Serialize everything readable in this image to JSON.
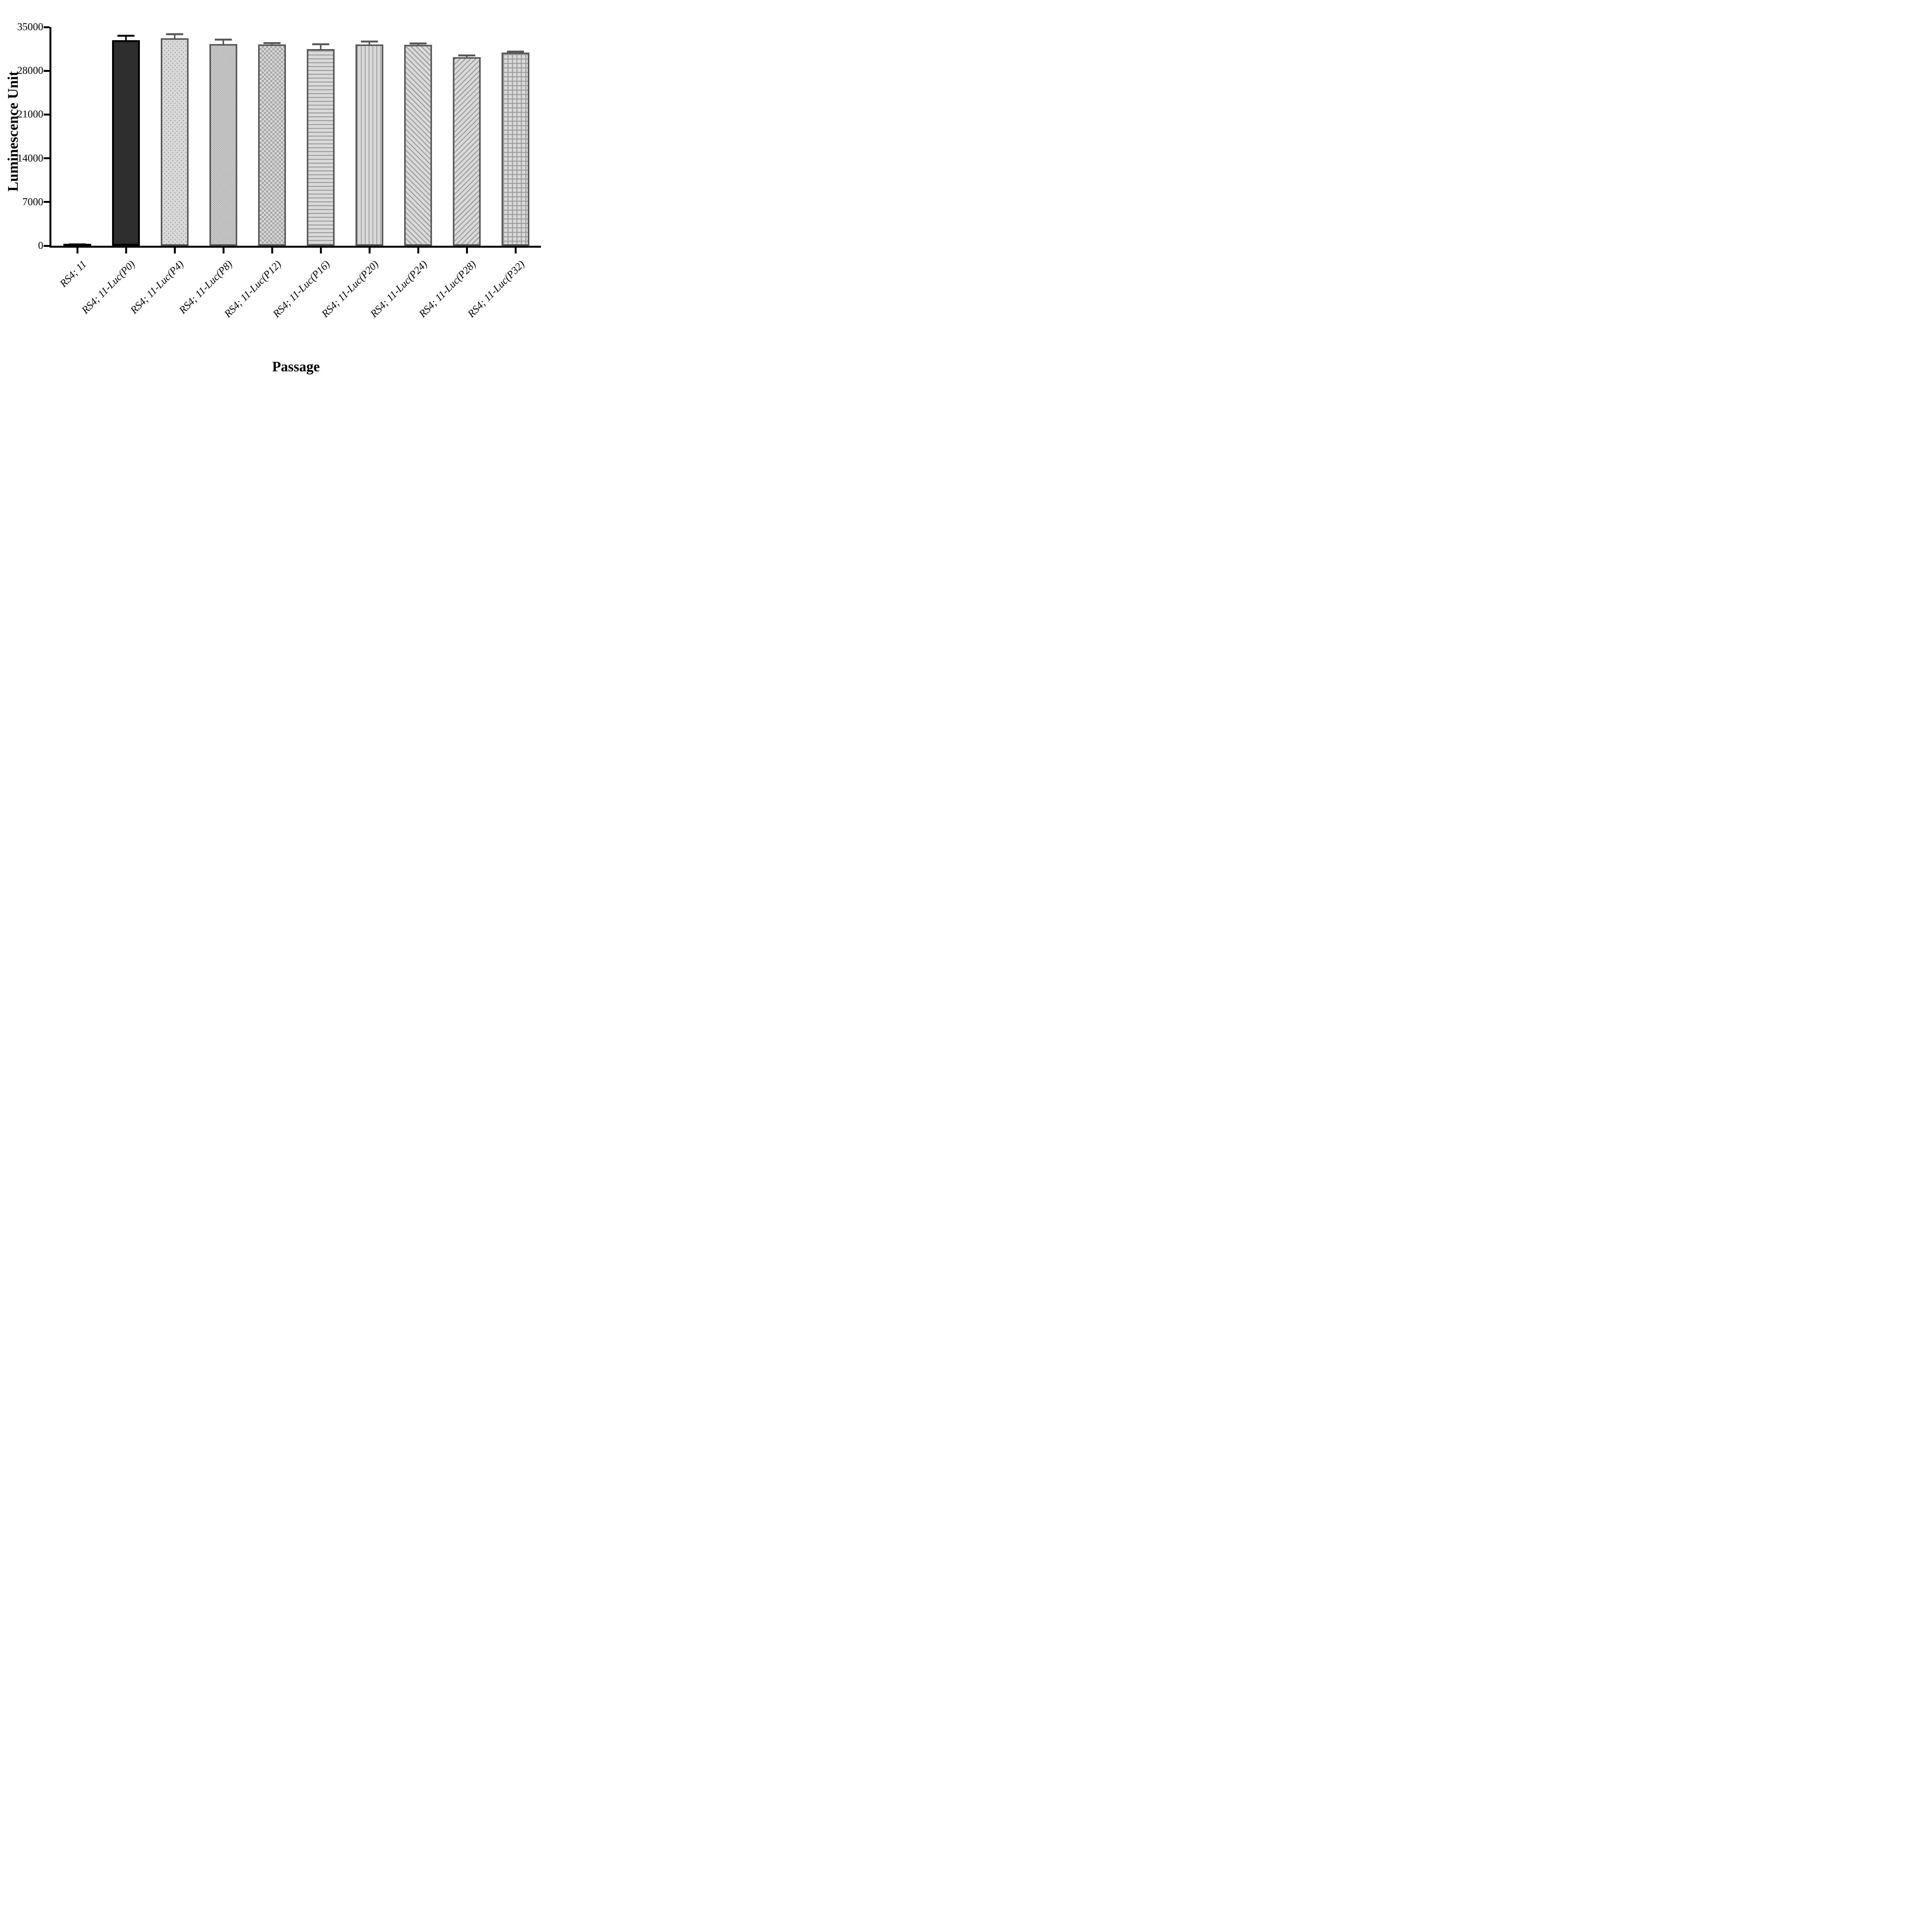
{
  "chart_data": {
    "type": "bar",
    "title": "",
    "xlabel": "Passage",
    "ylabel": "Luminescence Unit",
    "ylim": [
      0,
      35000
    ],
    "yticks": [
      0,
      7000,
      14000,
      21000,
      28000,
      35000
    ],
    "grid": false,
    "legend_position": "none",
    "categories": [
      "RS4; 11",
      "RS4; 11-Luc(P0)",
      "RS4; 11-Luc(P4)",
      "RS4; 11-Luc(P8)",
      "RS4; 11-Luc(P12)",
      "RS4; 11-Luc(P16)",
      "RS4; 11-Luc(P20)",
      "RS4; 11-Luc(P24)",
      "RS4; 11-Luc(P28)",
      "RS4; 11-Luc(P32)"
    ],
    "values": [
      200,
      32900,
      33200,
      32300,
      32200,
      31500,
      32200,
      32150,
      30200,
      30900
    ],
    "errors": [
      150,
      850,
      800,
      850,
      400,
      900,
      650,
      350,
      400,
      350
    ],
    "bar_patterns": [
      "solid-black",
      "solid-dark",
      "dots",
      "checker-fine",
      "checker-coarse",
      "hlines",
      "vlines",
      "diag-up",
      "diag-down",
      "grid"
    ],
    "error_bar_colors": [
      "#000000",
      "#000000",
      "#58595b",
      "#58595b",
      "#58595b",
      "#58595b",
      "#58595b",
      "#58595b",
      "#58595b",
      "#58595b"
    ],
    "colors": {
      "axis": "#000000",
      "solid_bar_fill": "#2d2d2d",
      "pattern_background": "#d9d9d9",
      "pattern_foreground": "#9b9b9b",
      "pattern_border": "#58595b"
    }
  }
}
